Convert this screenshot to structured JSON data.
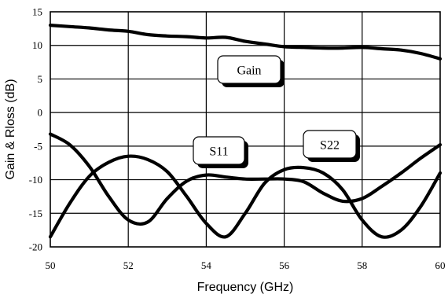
{
  "chart_data": {
    "type": "line",
    "xlabel": "Frequency (GHz)",
    "ylabel": "Gain & Rloss (dB)",
    "xlim": [
      50,
      60
    ],
    "ylim": [
      -20,
      15
    ],
    "xticks": [
      50,
      52,
      54,
      56,
      58,
      60
    ],
    "yticks": [
      15,
      10,
      5,
      0,
      -5,
      -10,
      -15,
      -20
    ],
    "grid": true,
    "series": [
      {
        "name": "Gain",
        "x": [
          50,
          50.5,
          51,
          51.5,
          52,
          52.5,
          53,
          53.5,
          54,
          54.5,
          55,
          55.5,
          56,
          56.5,
          57,
          57.5,
          58,
          58.5,
          59,
          59.5,
          60
        ],
        "y": [
          13,
          12.8,
          12.6,
          12.3,
          12.1,
          11.6,
          11.4,
          11.3,
          11.1,
          11.2,
          10.6,
          10.2,
          9.8,
          9.7,
          9.6,
          9.6,
          9.7,
          9.5,
          9.3,
          8.8,
          8.0
        ]
      },
      {
        "name": "S11",
        "x": [
          50,
          50.5,
          51,
          51.5,
          52,
          52.5,
          53,
          53.5,
          54,
          54.5,
          55,
          55.5,
          56,
          56.5,
          57,
          57.5,
          58,
          58.5,
          59,
          59.5,
          60
        ],
        "y": [
          -3.2,
          -4.8,
          -8,
          -12.5,
          -16,
          -16.3,
          -12.8,
          -10.2,
          -9.3,
          -9.6,
          -9.9,
          -9.9,
          -9.9,
          -10.3,
          -12,
          -13.2,
          -12.8,
          -11,
          -9,
          -6.8,
          -4.8
        ]
      },
      {
        "name": "S22",
        "x": [
          50,
          50.5,
          51,
          51.5,
          52,
          52.5,
          53,
          53.5,
          54,
          54.5,
          55,
          55.5,
          56,
          56.5,
          57,
          57.5,
          58,
          58.5,
          59,
          59.5,
          60
        ],
        "y": [
          -18.5,
          -13.5,
          -9.5,
          -7.4,
          -6.5,
          -7,
          -8.8,
          -12.5,
          -16.5,
          -18.5,
          -15,
          -10.5,
          -8.5,
          -8.2,
          -9,
          -11.5,
          -16,
          -18.5,
          -17.5,
          -14,
          -9
        ]
      }
    ],
    "callouts": [
      "Gain",
      "S11",
      "S22"
    ]
  }
}
